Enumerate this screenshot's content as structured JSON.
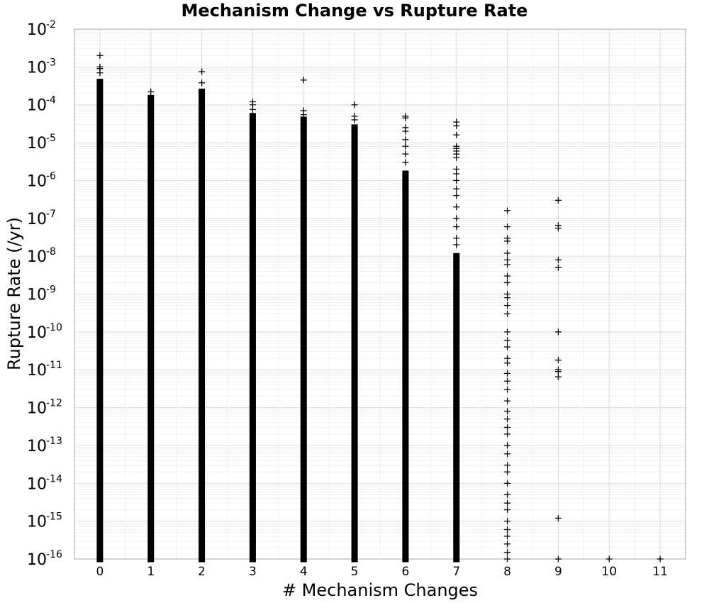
{
  "chart_data": {
    "type": "scatter",
    "title": "Mechanism Change vs Rupture Rate",
    "xlabel": "# Mechanism Changes",
    "ylabel": "Rupture Rate (/yr)",
    "xlim": [
      -0.5,
      11.5
    ],
    "ylim": [
      1e-16,
      0.01
    ],
    "y_scale": "log",
    "grid": true,
    "marker": "+",
    "marker_color": "#000000",
    "x_ticks": [
      "0",
      "1",
      "2",
      "3",
      "4",
      "5",
      "6",
      "7",
      "8",
      "9",
      "10",
      "11"
    ],
    "y_ticks": [
      {
        "base": "10",
        "exp": "-2"
      },
      {
        "base": "10",
        "exp": "-3"
      },
      {
        "base": "10",
        "exp": "-4"
      },
      {
        "base": "10",
        "exp": "-5"
      },
      {
        "base": "10",
        "exp": "-6"
      },
      {
        "base": "10",
        "exp": "-7"
      },
      {
        "base": "10",
        "exp": "-8"
      },
      {
        "base": "10",
        "exp": "-9"
      },
      {
        "base": "10",
        "exp": "-10"
      },
      {
        "base": "10",
        "exp": "-11"
      },
      {
        "base": "10",
        "exp": "-12"
      },
      {
        "base": "10",
        "exp": "-13"
      },
      {
        "base": "10",
        "exp": "-14"
      },
      {
        "base": "10",
        "exp": "-15"
      },
      {
        "base": "10",
        "exp": "-16"
      }
    ],
    "columns": [
      {
        "x": 0,
        "y_min": 1e-16,
        "y_dense_max": 0.0004,
        "outliers": [
          0.002,
          0.001,
          0.0009,
          0.0007
        ]
      },
      {
        "x": 1,
        "y_min": 1e-16,
        "y_dense_max": 0.00015,
        "outliers": [
          0.00022
        ]
      },
      {
        "x": 2,
        "y_min": 1e-16,
        "y_dense_max": 0.00022,
        "outliers": [
          0.00075,
          0.00038
        ]
      },
      {
        "x": 3,
        "y_min": 1e-16,
        "y_dense_max": 5e-05,
        "outliers": [
          0.00012,
          0.0001,
          7.5e-05
        ]
      },
      {
        "x": 4,
        "y_min": 1e-16,
        "y_dense_max": 4e-05,
        "outliers": [
          0.00045,
          7e-05,
          5.5e-05
        ]
      },
      {
        "x": 5,
        "y_min": 1e-16,
        "y_dense_max": 2.5e-05,
        "outliers": [
          0.0001,
          5e-05,
          4e-05
        ]
      },
      {
        "x": 6,
        "y_min": 1e-16,
        "y_dense_max": 1.5e-06,
        "outliers": [
          5e-05,
          4.5e-05,
          2.5e-05,
          2e-05,
          1.2e-05,
          8e-06,
          5e-06,
          3e-06
        ]
      },
      {
        "x": 7,
        "y_min": 1e-16,
        "y_dense_max": 1e-08,
        "outliers": [
          3.5e-05,
          2.8e-05,
          1.6e-05,
          8e-06,
          7e-06,
          6e-06,
          5e-06,
          4e-06,
          2e-06,
          1.5e-06,
          1e-06,
          6e-07,
          4e-07,
          2e-07,
          1e-07,
          6e-08,
          3e-08,
          2e-08
        ]
      },
      {
        "x": 8,
        "y_min": 1e-16,
        "y_dense_max": null,
        "outliers": [
          1.6e-07,
          6e-08,
          3e-08,
          2.5e-08,
          1.2e-08,
          8e-09,
          6e-09,
          3e-09,
          2e-09,
          1e-09,
          8e-10,
          5e-10,
          3e-10,
          1e-10,
          6e-11,
          4e-11,
          2e-11,
          1.5e-11,
          8e-12,
          5e-12,
          3e-12,
          1.5e-12,
          8e-13,
          5e-13,
          3e-13,
          2e-13,
          1e-13,
          6e-14,
          3e-14,
          2e-14,
          1e-14,
          5e-15,
          3e-15,
          2e-15,
          1e-15,
          6e-16,
          4e-16,
          2.5e-16,
          1.5e-16,
          1e-16
        ]
      },
      {
        "x": 9,
        "y_min": 1e-16,
        "y_dense_max": null,
        "outliers": [
          3e-07,
          6.5e-08,
          5.5e-08,
          8e-09,
          5e-09,
          1e-10,
          1.8e-11,
          1e-11,
          9e-12,
          6.5e-12,
          1.2e-15,
          1e-16
        ]
      },
      {
        "x": 10,
        "y_min": 1e-16,
        "y_dense_max": null,
        "outliers": [
          1e-16
        ]
      },
      {
        "x": 11,
        "y_min": 1e-16,
        "y_dense_max": null,
        "outliers": [
          1e-16
        ]
      }
    ]
  }
}
